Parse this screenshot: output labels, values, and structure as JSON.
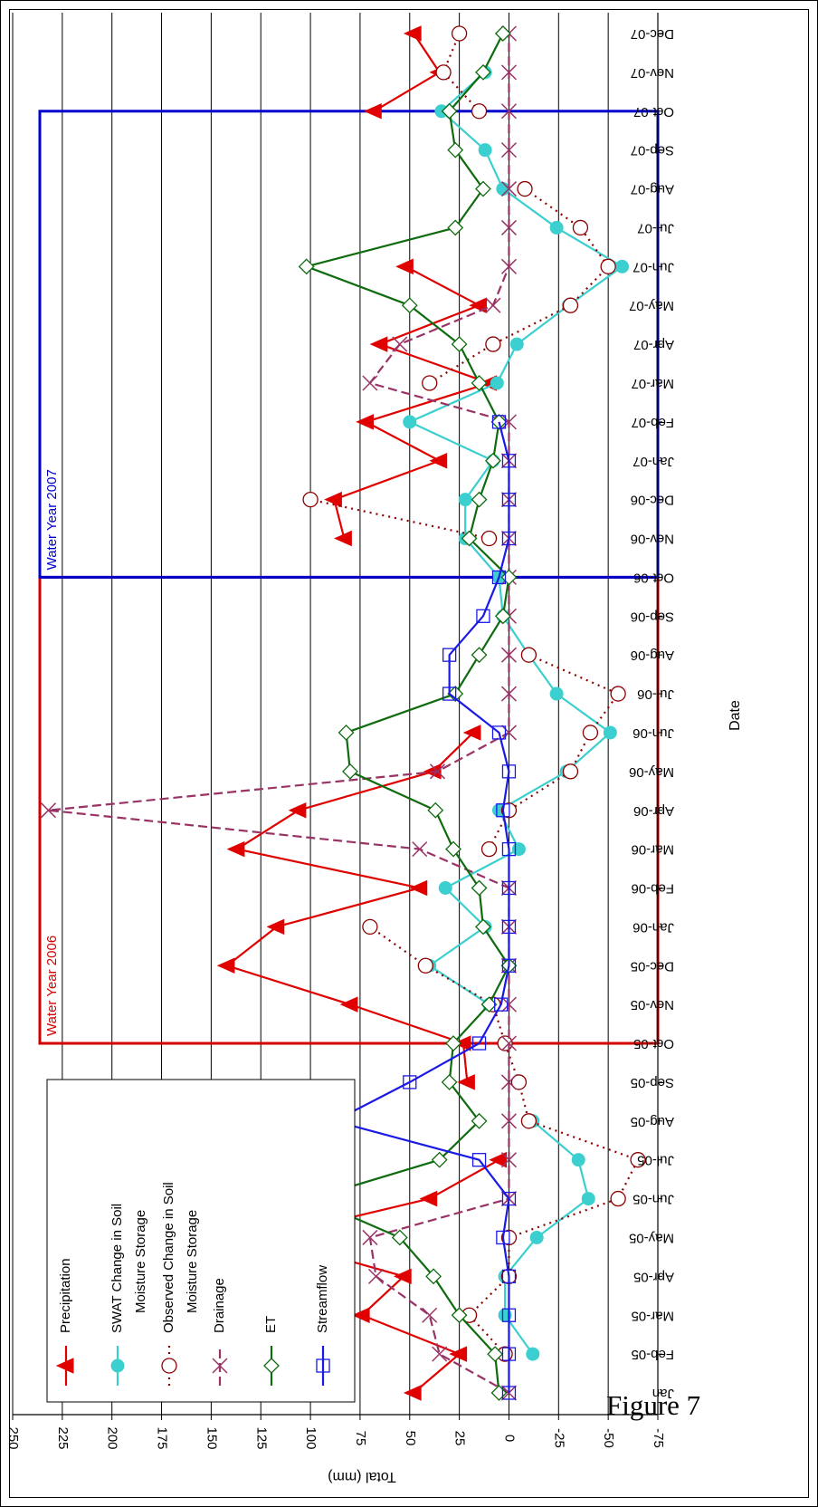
{
  "figure": {
    "caption": "Figure 7"
  },
  "chart_data": {
    "type": "line",
    "orientation": "rotated 90 degrees clockwise",
    "xlabel": "Date",
    "ylabel": "Total (mm)",
    "ylim": [
      -75,
      250
    ],
    "yticks": [
      "250",
      "225",
      "200",
      "175",
      "150",
      "125",
      "100",
      "75",
      "50",
      "25",
      "0",
      "-25",
      "-50",
      "-75"
    ],
    "grid": true,
    "categories": [
      "Jan",
      "Feb-05",
      "Mar-05",
      "Apr-05",
      "May-05",
      "Jun-05",
      "Jul-05",
      "Aug-05",
      "Sep-05",
      "Oct-05",
      "Nov-05",
      "Dec-05",
      "Jan-06",
      "Feb-06",
      "Mar-06",
      "Apr-06",
      "May-06",
      "Jun-06",
      "Jul-06",
      "Aug-06",
      "Sep-06",
      "Oct-06",
      "Nov-06",
      "Dec-06",
      "Jan-07",
      "Feb-07",
      "Mar-07",
      "Apr-07",
      "May-07",
      "Jun-07",
      "Jul-07",
      "Aug-07",
      "Sep-07",
      "Oct-07",
      "Nov-07",
      "Dec-07"
    ],
    "regions": [
      {
        "label": "Water Year 2006",
        "from": "Oct-05",
        "to": "Oct-06",
        "color": "#d40000"
      },
      {
        "label": "Water Year 2007",
        "from": "Oct-06",
        "to": "Oct-07",
        "color": "#0000cc"
      }
    ],
    "legend": {
      "position": "top-left"
    },
    "series": [
      {
        "name": "Precipitation",
        "color": "#e00000",
        "marker": "triangle",
        "dash": "solid",
        "values": [
          48,
          25,
          74,
          53,
          122,
          40,
          5,
          null,
          21,
          23,
          80,
          142,
          117,
          45,
          137,
          106,
          38,
          18,
          null,
          null,
          null,
          null,
          83,
          88,
          35,
          72,
          10,
          65,
          15,
          52,
          null,
          null,
          null,
          68,
          35,
          48
        ]
      },
      {
        "name": "SWAT Change in Soil\nMoisture Storage",
        "color": "#3ccfcf",
        "marker": "circle",
        "dash": "solid",
        "values": [
          null,
          -12,
          2,
          2,
          -14,
          -40,
          -35,
          -12,
          null,
          null,
          10,
          40,
          12,
          32,
          -5,
          5,
          -29,
          -51,
          -24,
          -10,
          3,
          5,
          22,
          22,
          8,
          50,
          6,
          -4,
          -30,
          -57,
          -24,
          3,
          12,
          34,
          12,
          null
        ]
      },
      {
        "name": "Observed Change in Soil\nMoisture Storage",
        "color": "#8b0000",
        "marker": "circle-open",
        "dash": "dotted",
        "values": [
          null,
          2,
          20,
          0,
          0,
          -55,
          -65,
          -10,
          -5,
          2,
          8,
          42,
          70,
          null,
          10,
          0,
          -31,
          -41,
          -55,
          -10,
          null,
          null,
          10,
          100,
          null,
          null,
          40,
          8,
          -31,
          -50,
          -36,
          -8,
          null,
          15,
          33,
          25
        ]
      },
      {
        "name": "Drainage",
        "color": "#993366",
        "marker": "x",
        "dash": "dashed",
        "values": [
          0,
          35,
          40,
          67,
          70,
          0,
          0,
          0,
          0,
          0,
          0,
          0,
          0,
          0,
          45,
          232,
          36,
          0,
          0,
          0,
          0,
          0,
          0,
          0,
          0,
          0,
          70,
          55,
          8,
          0,
          0,
          0,
          0,
          0,
          0,
          0
        ]
      },
      {
        "name": "ET",
        "color": "#0e6b0e",
        "marker": "diamond-open",
        "dash": "solid",
        "values": [
          5,
          7,
          25,
          38,
          55,
          100,
          35,
          15,
          30,
          28,
          10,
          0,
          13,
          15,
          28,
          37,
          80,
          82,
          27,
          15,
          3,
          0,
          20,
          15,
          8,
          5,
          15,
          25,
          50,
          102,
          27,
          13,
          27,
          30,
          13,
          3
        ]
      },
      {
        "name": "Streamflow",
        "color": "#1a1ae6",
        "marker": "square-open",
        "dash": "solid",
        "values": [
          0,
          0,
          0,
          0,
          3,
          0,
          15,
          88,
          50,
          15,
          4,
          0,
          0,
          0,
          0,
          3,
          0,
          5,
          30,
          30,
          13,
          5,
          0,
          0,
          0,
          5,
          null,
          null,
          null,
          null,
          null,
          null,
          null,
          null,
          null,
          null
        ]
      }
    ]
  }
}
